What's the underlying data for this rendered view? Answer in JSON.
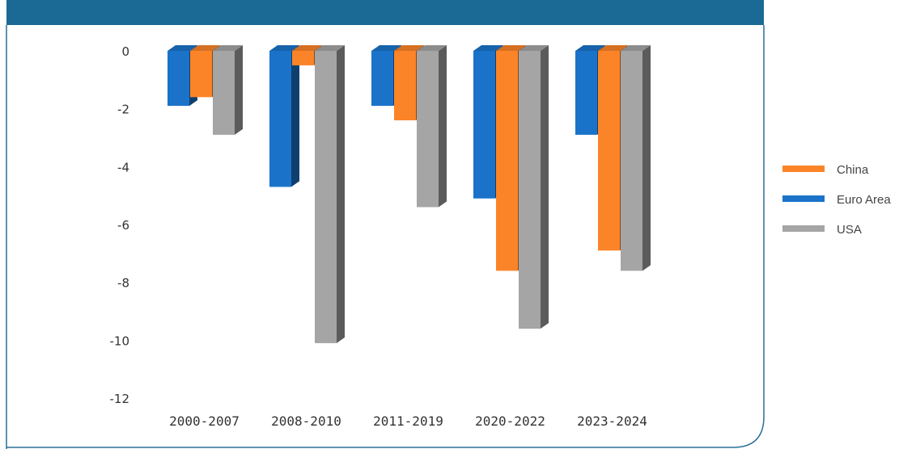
{
  "chart_data": {
    "type": "bar",
    "title": "",
    "xlabel": "",
    "ylabel": "",
    "ylim": [
      -12,
      0
    ],
    "yticks": [
      0,
      -2,
      -4,
      -6,
      -8,
      -10,
      -12
    ],
    "categories": [
      "2000-2007",
      "2008-2010",
      "2011-2019",
      "2020-2022",
      "2023-2024"
    ],
    "series": [
      {
        "name": "Euro Area",
        "color": "#1a73c9",
        "values": [
          -1.9,
          -4.7,
          -1.9,
          -5.1,
          -2.9
        ]
      },
      {
        "name": "China",
        "color": "#fc8428",
        "values": [
          -1.6,
          -0.5,
          -2.4,
          -7.6,
          -6.9
        ]
      },
      {
        "name": "USA",
        "color": "#a5a5a5",
        "values": [
          -2.9,
          -10.1,
          -5.4,
          -9.6,
          -7.6
        ]
      }
    ],
    "legend": {
      "placement": "right",
      "order": [
        "China",
        "Euro Area",
        "USA"
      ]
    },
    "grid": false
  }
}
